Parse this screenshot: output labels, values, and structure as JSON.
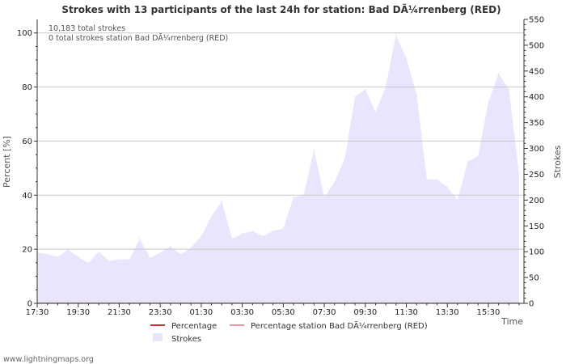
{
  "chart_data": {
    "type": "area",
    "title": "Strokes with 13 participants of the last 24h for station: Bad DÃ¼rrenberg (RED)",
    "info_lines": [
      "10,183 total strokes",
      "0 total strokes station Bad DÃ¼rrenberg (RED)"
    ],
    "xlabel": "Time",
    "ylabel_left": "Percent   [%]",
    "ylabel_right": "Strokes",
    "x_hours": [
      0,
      0.5,
      1,
      1.5,
      2,
      2.5,
      3,
      3.5,
      4,
      4.5,
      5,
      5.5,
      6,
      6.5,
      7,
      7.5,
      8,
      8.5,
      9,
      9.5,
      10,
      10.5,
      11,
      11.5,
      12,
      12.5,
      13,
      13.5,
      14,
      14.5,
      15,
      15.5,
      16,
      16.5,
      17,
      17.5,
      18,
      18.5,
      19,
      19.5,
      20,
      20.5,
      21,
      21.5,
      22,
      22.5,
      23,
      23.5
    ],
    "x_tick_labels": [
      "17:30",
      "19:30",
      "21:30",
      "23:30",
      "01:30",
      "03:30",
      "05:30",
      "07:30",
      "09:30",
      "11:30",
      "13:30",
      "15:30"
    ],
    "x_tick_hours": [
      0,
      2,
      4,
      6,
      8,
      10,
      12,
      14,
      16,
      18,
      20,
      22
    ],
    "left_axis": {
      "min": 0,
      "max": 105,
      "ticks": [
        0,
        20,
        40,
        60,
        80,
        100
      ]
    },
    "right_axis": {
      "min": 0,
      "max": 550,
      "ticks": [
        0,
        50,
        100,
        150,
        200,
        250,
        300,
        350,
        400,
        450,
        500,
        550
      ]
    },
    "series": [
      {
        "name": "Strokes",
        "axis": "right",
        "color": "#e8e6fc",
        "values": [
          98,
          95,
          90,
          105,
          90,
          78,
          100,
          82,
          85,
          85,
          125,
          88,
          98,
          110,
          95,
          108,
          130,
          168,
          198,
          125,
          135,
          140,
          130,
          140,
          145,
          205,
          210,
          298,
          205,
          235,
          280,
          400,
          415,
          370,
          420,
          520,
          475,
          405,
          240,
          240,
          225,
          200,
          275,
          285,
          390,
          445,
          415,
          250
        ]
      },
      {
        "name": "Percentage",
        "axis": "left",
        "color": "#cc3333",
        "values": [
          0,
          0,
          0,
          0,
          0,
          0,
          0,
          0,
          0,
          0,
          0,
          0,
          0,
          0,
          0,
          0,
          0,
          0,
          0,
          0,
          0,
          0,
          0,
          0,
          0,
          0,
          0,
          0,
          0,
          0,
          0,
          0,
          0,
          0,
          0,
          0,
          0,
          0,
          0,
          0,
          0,
          0,
          0,
          0,
          0,
          0,
          0,
          0
        ]
      },
      {
        "name": "Percentage station Bad DÃ¼rrenberg (RED)",
        "axis": "left",
        "color": "#e89a9a",
        "values": [
          0,
          0,
          0,
          0,
          0,
          0,
          0,
          0,
          0,
          0,
          0,
          0,
          0,
          0,
          0,
          0,
          0,
          0,
          0,
          0,
          0,
          0,
          0,
          0,
          0,
          0,
          0,
          0,
          0,
          0,
          0,
          0,
          0,
          0,
          0,
          0,
          0,
          0,
          0,
          0,
          0,
          0,
          0,
          0,
          0,
          0,
          0,
          0
        ]
      }
    ],
    "legend": [
      "Percentage",
      "Percentage station Bad DÃ¼rrenberg (RED)",
      "Strokes"
    ],
    "grid": true
  },
  "credit": "www.lightningmaps.org"
}
